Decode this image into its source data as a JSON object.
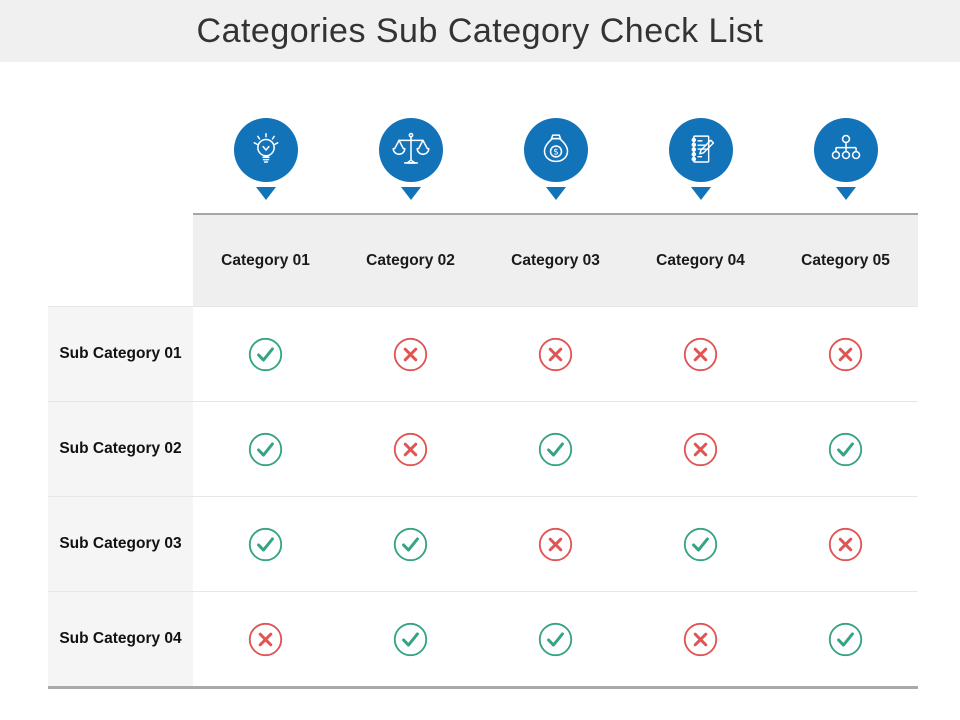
{
  "slide": {
    "title": "Categories Sub Category Check List"
  },
  "header": {
    "icons": [
      "lightbulb-icon",
      "balance-scale-icon",
      "money-bag-icon",
      "notepad-pencil-icon",
      "hierarchy-icon"
    ]
  },
  "table": {
    "columns": [
      "Category 01",
      "Category 02",
      "Category 03",
      "Category 04",
      "Category 05"
    ],
    "rows": [
      {
        "label": "Sub Category 01",
        "values": [
          "check",
          "cross",
          "cross",
          "cross",
          "cross"
        ]
      },
      {
        "label": "Sub Category 02",
        "values": [
          "check",
          "cross",
          "check",
          "cross",
          "check"
        ]
      },
      {
        "label": "Sub Category 03",
        "values": [
          "check",
          "check",
          "cross",
          "check",
          "cross"
        ]
      },
      {
        "label": "Sub Category 04",
        "values": [
          "cross",
          "check",
          "check",
          "cross",
          "check"
        ]
      }
    ]
  },
  "colors": {
    "accent_blue": "#1373b9",
    "check_green": "#35a384",
    "cross_red": "#e05454",
    "title_text": "#333333",
    "header_bg": "#efefef",
    "label_bg": "#f5f5f5",
    "title_band_bg": "#f0f0f0"
  }
}
